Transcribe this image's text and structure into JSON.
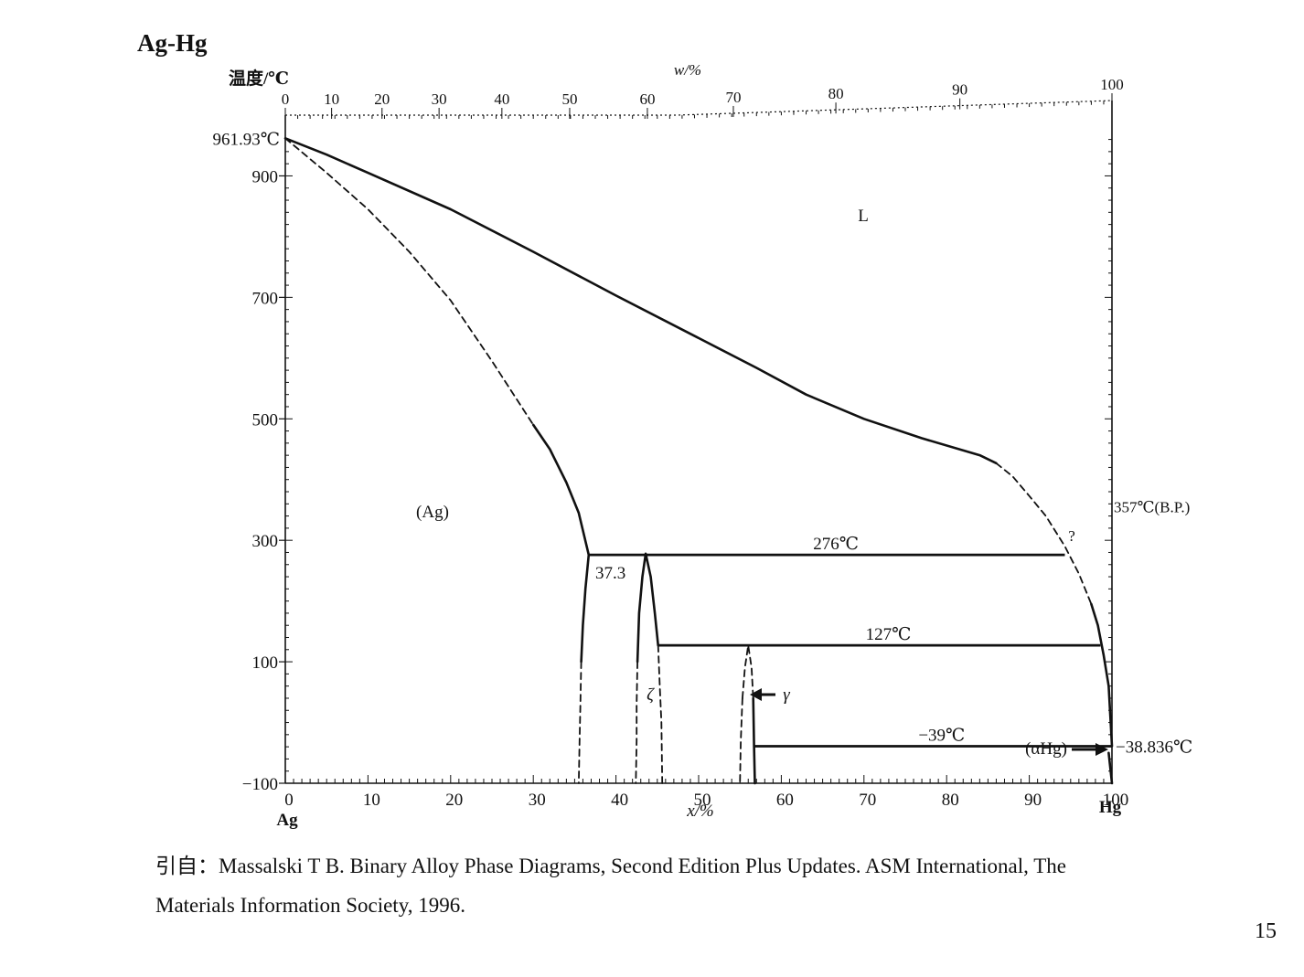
{
  "title": "Ag-Hg",
  "citation": {
    "line1": "引自：Massalski T B. Binary Alloy Phase Diagrams, Second Edition Plus Updates. ASM International, The",
    "line2": "Materials Information Society, 1996."
  },
  "page_number": "15",
  "chart_data": {
    "type": "line",
    "title": "Ag-Hg",
    "ylabel": "温度/℃",
    "xlabel": "x/%",
    "top_axis_label": "w/%",
    "xlim": [
      0,
      100
    ],
    "ylim": [
      -100,
      1000
    ],
    "x_ticks": [
      "0",
      "10",
      "20",
      "30",
      "40",
      "50",
      "60",
      "70",
      "80",
      "90",
      "100"
    ],
    "x_tick_values": [
      0,
      10,
      20,
      30,
      40,
      50,
      60,
      70,
      80,
      90,
      100
    ],
    "x_end_labels": {
      "left": "Ag",
      "right": "Hg"
    },
    "top_ticks": [
      "0",
      "10",
      "20",
      "30",
      "40",
      "50",
      "60",
      "70",
      "80",
      "90",
      "100"
    ],
    "top_tick_x": [
      0,
      5.6,
      11.7,
      18.6,
      26.2,
      34.4,
      43.8,
      54.2,
      66.6,
      81.6,
      100
    ],
    "y_ticks": [
      "900",
      "700",
      "500",
      "300",
      "100",
      "−100"
    ],
    "y_tick_values": [
      900,
      700,
      500,
      300,
      100,
      -100
    ],
    "series": [
      {
        "style": "solid",
        "points": [
          [
            0,
            961.93
          ],
          [
            5,
            935
          ],
          [
            10,
            905
          ],
          [
            20,
            845
          ],
          [
            30,
            775
          ],
          [
            40,
            703
          ],
          [
            50,
            633
          ],
          [
            57,
            584
          ],
          [
            63,
            540
          ],
          [
            70,
            500
          ],
          [
            77,
            468
          ],
          [
            84,
            440
          ],
          [
            86,
            427
          ]
        ]
      },
      {
        "style": "dashed",
        "points": [
          [
            86,
            427
          ],
          [
            88,
            405
          ],
          [
            90,
            373
          ],
          [
            92,
            340
          ],
          [
            94.3,
            290
          ],
          [
            96,
            245
          ],
          [
            97.5,
            195
          ]
        ]
      },
      {
        "style": "solid",
        "points": [
          [
            97.5,
            195
          ],
          [
            98.3,
            160
          ],
          [
            99,
            110
          ],
          [
            99.6,
            60
          ],
          [
            100,
            -38.836
          ]
        ]
      },
      {
        "style": "dashed",
        "points": [
          [
            0,
            961.93
          ],
          [
            5,
            905
          ],
          [
            10,
            845
          ],
          [
            15,
            775
          ],
          [
            20,
            695
          ],
          [
            25,
            595
          ],
          [
            30,
            490
          ]
        ]
      },
      {
        "style": "solid",
        "points": [
          [
            30,
            490
          ],
          [
            32,
            450
          ],
          [
            34,
            395
          ],
          [
            35.5,
            345
          ],
          [
            36.7,
            276
          ]
        ]
      },
      {
        "style": "solid",
        "points": [
          [
            36.7,
            276
          ],
          [
            36.3,
            220
          ],
          [
            36,
            160
          ],
          [
            35.8,
            100
          ]
        ]
      },
      {
        "style": "dashed",
        "points": [
          [
            35.8,
            100
          ],
          [
            35.7,
            30
          ],
          [
            35.6,
            -30
          ],
          [
            35.5,
            -100
          ]
        ]
      },
      {
        "style": "solid",
        "points": [
          [
            42.6,
            100
          ],
          [
            42.8,
            180
          ],
          [
            43.2,
            240
          ],
          [
            43.6,
            278
          ],
          [
            44.2,
            240
          ],
          [
            44.7,
            180
          ],
          [
            45.1,
            127
          ]
        ]
      },
      {
        "style": "dashed",
        "points": [
          [
            42.6,
            100
          ],
          [
            42.5,
            30
          ],
          [
            42.5,
            -30
          ],
          [
            42.4,
            -100
          ]
        ]
      },
      {
        "style": "dashed",
        "points": [
          [
            45.1,
            127
          ],
          [
            45.3,
            60
          ],
          [
            45.5,
            0
          ],
          [
            45.6,
            -100
          ]
        ]
      },
      {
        "style": "dashed",
        "points": [
          [
            55.3,
            40
          ],
          [
            55.6,
            90
          ],
          [
            56,
            127
          ],
          [
            56.4,
            90
          ],
          [
            56.6,
            40
          ]
        ]
      },
      {
        "style": "dashed",
        "points": [
          [
            55.3,
            40
          ],
          [
            55.1,
            -30
          ],
          [
            55,
            -100
          ]
        ]
      },
      {
        "style": "solid",
        "points": [
          [
            56.6,
            40
          ],
          [
            56.7,
            -39
          ],
          [
            56.8,
            -100
          ]
        ]
      },
      {
        "style": "solid",
        "points": [
          [
            99.6,
            -50
          ],
          [
            99.8,
            -75
          ],
          [
            100,
            -100
          ]
        ]
      }
    ],
    "isotherms": [
      {
        "label": "276℃",
        "temperature": 276,
        "x_start": 36.7,
        "x_end": 94.3
      },
      {
        "label": "127℃",
        "temperature": 127,
        "x_start": 45.1,
        "x_end": 98.6
      },
      {
        "label": "−39℃",
        "temperature": -39,
        "x_start": 56.6,
        "x_end": 100
      }
    ],
    "annotations": {
      "melting_point_ag": "961.93℃",
      "boiling_point_hg": "357℃(B.P.)",
      "melting_point_hg": "−38.836℃",
      "composition_37_3": "37.3",
      "question_mark": "?",
      "phase_liquid": "L",
      "phase_ag": "(Ag)",
      "phase_zeta": "ζ",
      "phase_gamma": "γ",
      "phase_alpha_hg": "(αHg)"
    }
  }
}
